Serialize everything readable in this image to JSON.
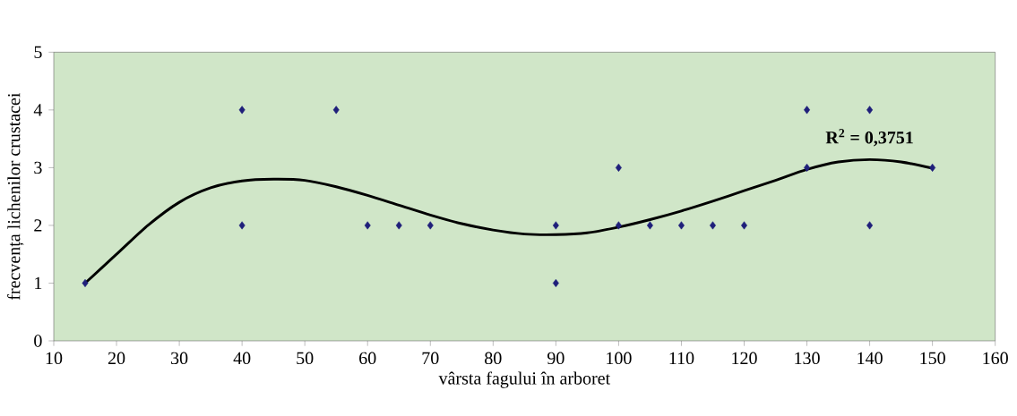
{
  "chart_data": {
    "type": "scatter",
    "xlabel": "vârsta fagului în arboret",
    "ylabel": "frecvența lichenilor crustacei",
    "xlim": [
      10,
      160
    ],
    "xticks": [
      10,
      20,
      30,
      40,
      50,
      60,
      70,
      80,
      90,
      100,
      110,
      120,
      130,
      140,
      150,
      160
    ],
    "ylim": [
      0,
      5
    ],
    "yticks": [
      0,
      1,
      2,
      3,
      4,
      5
    ],
    "marker": "diamond",
    "series": [
      {
        "color": "#1f1f7a",
        "x": [
          15,
          40,
          40,
          55,
          60,
          65,
          70,
          90,
          90,
          100,
          100,
          105,
          110,
          115,
          120,
          130,
          130,
          140,
          140,
          150
        ],
        "values": [
          1,
          4,
          2,
          4,
          2,
          2,
          2,
          2,
          1,
          3,
          2,
          2,
          2,
          2,
          2,
          4,
          3,
          4,
          2,
          3
        ]
      },
      {
        "type": "line",
        "color": "#000000",
        "marker": "none",
        "line_style": "solid",
        "x": [
          15,
          20,
          25,
          30,
          35,
          40,
          45,
          50,
          55,
          60,
          65,
          70,
          75,
          80,
          85,
          90,
          95,
          100,
          105,
          110,
          115,
          120,
          125,
          130,
          135,
          140,
          145,
          150
        ],
        "values": [
          1.0,
          1.5,
          2.0,
          2.4,
          2.65,
          2.77,
          2.8,
          2.78,
          2.67,
          2.52,
          2.35,
          2.18,
          2.03,
          1.92,
          1.85,
          1.84,
          1.87,
          1.97,
          2.1,
          2.25,
          2.42,
          2.6,
          2.78,
          2.97,
          3.1,
          3.14,
          3.1,
          2.99
        ]
      }
    ],
    "annotations": [
      {
        "text": "R$^{2}$ = 0,3751",
        "x": 140,
        "y": 3.14
      }
    ]
  }
}
